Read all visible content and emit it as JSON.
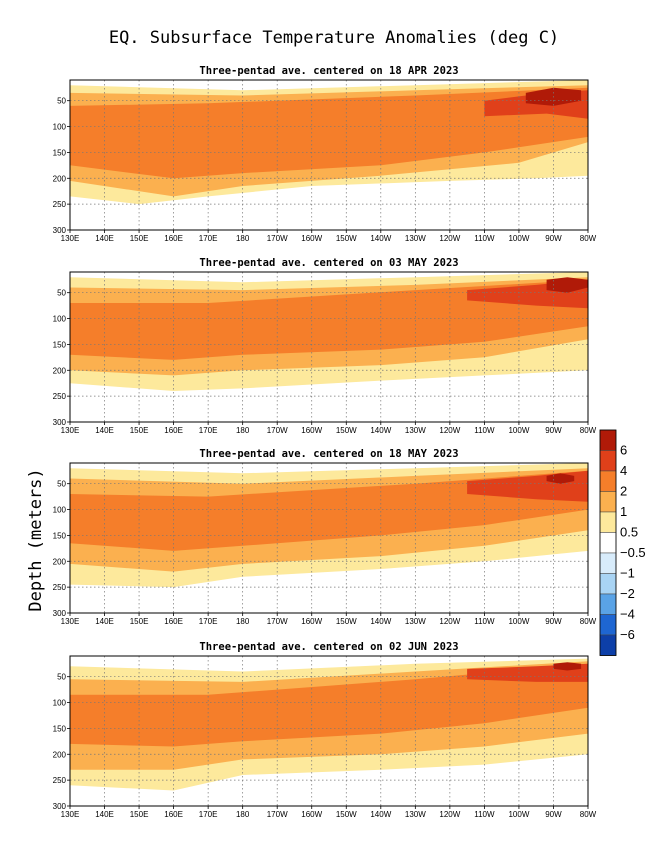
{
  "chart_data": {
    "type": "heatmap",
    "title": "EQ. Subsurface Temperature Anomalies (deg C)",
    "ylabel": "Depth (meters)",
    "y_ticks": [
      "50",
      "100",
      "150",
      "200",
      "250",
      "300"
    ],
    "ylim": [
      300,
      10
    ],
    "x_ticks": [
      "130E",
      "140E",
      "150E",
      "160E",
      "170E",
      "180",
      "170W",
      "160W",
      "150W",
      "140W",
      "130W",
      "120W",
      "110W",
      "100W",
      "90W",
      "80W"
    ],
    "x_range_lon": [
      130,
      280
    ],
    "grid": true,
    "legend": {
      "placement": "right",
      "labels": [
        "6",
        "4",
        "2",
        "1",
        "0.5",
        "−0.5",
        "−1",
        "−2",
        "−4",
        "−6"
      ],
      "colors": [
        "#b01a08",
        "#e0401a",
        "#f57e2a",
        "#fbb04f",
        "#fde99c",
        "#ffffff",
        "#d8ecfb",
        "#a9d4f4",
        "#5aa3e6",
        "#1e66d2",
        "#0d3fa8"
      ]
    },
    "panels": [
      {
        "title": "Three-pentad ave. centered on 18 APR 2023",
        "layers": [
          {
            "level": 0.5,
            "top": [
              [
                130,
                20
              ],
              [
                180,
                30
              ],
              [
                230,
                20
              ],
              [
                280,
                10
              ]
            ],
            "bottom": [
              [
                130,
                235
              ],
              [
                150,
                250
              ],
              [
                170,
                235
              ],
              [
                200,
                215
              ],
              [
                240,
                205
              ],
              [
                265,
                200
              ],
              [
                280,
                195
              ]
            ]
          },
          {
            "level": 1,
            "top": [
              [
                130,
                35
              ],
              [
                180,
                40
              ],
              [
                230,
                30
              ],
              [
                280,
                20
              ]
            ],
            "bottom": [
              [
                130,
                205
              ],
              [
                160,
                235
              ],
              [
                180,
                215
              ],
              [
                220,
                195
              ],
              [
                260,
                170
              ],
              [
                280,
                130
              ]
            ]
          },
          {
            "level": 2,
            "top": [
              [
                130,
                60
              ],
              [
                170,
                55
              ],
              [
                230,
                40
              ],
              [
                280,
                25
              ]
            ],
            "bottom": [
              [
                130,
                175
              ],
              [
                160,
                200
              ],
              [
                180,
                190
              ],
              [
                220,
                175
              ],
              [
                250,
                150
              ],
              [
                280,
                120
              ]
            ]
          },
          {
            "level": 4,
            "top": [
              [
                250,
                50
              ],
              [
                268,
                35
              ],
              [
                280,
                30
              ]
            ],
            "bottom": [
              [
                250,
                80
              ],
              [
                268,
                75
              ],
              [
                280,
                85
              ]
            ]
          },
          {
            "level": 6,
            "top": [
              [
                262,
                35
              ],
              [
                270,
                25
              ],
              [
                278,
                30
              ]
            ],
            "bottom": [
              [
                262,
                55
              ],
              [
                270,
                60
              ],
              [
                278,
                50
              ]
            ]
          }
        ]
      },
      {
        "title": "Three-pentad ave. centered on 03 MAY 2023",
        "layers": [
          {
            "level": 0.5,
            "top": [
              [
                130,
                20
              ],
              [
                180,
                30
              ],
              [
                230,
                20
              ],
              [
                280,
                10
              ]
            ],
            "bottom": [
              [
                130,
                225
              ],
              [
                160,
                240
              ],
              [
                180,
                235
              ],
              [
                220,
                220
              ],
              [
                250,
                210
              ],
              [
                280,
                200
              ]
            ]
          },
          {
            "level": 1,
            "top": [
              [
                130,
                40
              ],
              [
                180,
                45
              ],
              [
                230,
                35
              ],
              [
                280,
                20
              ]
            ],
            "bottom": [
              [
                130,
                200
              ],
              [
                160,
                210
              ],
              [
                180,
                200
              ],
              [
                220,
                190
              ],
              [
                250,
                175
              ],
              [
                280,
                140
              ]
            ]
          },
          {
            "level": 2,
            "top": [
              [
                130,
                70
              ],
              [
                170,
                70
              ],
              [
                230,
                45
              ],
              [
                280,
                25
              ]
            ],
            "bottom": [
              [
                130,
                170
              ],
              [
                160,
                180
              ],
              [
                180,
                170
              ],
              [
                220,
                160
              ],
              [
                250,
                145
              ],
              [
                280,
                115
              ]
            ]
          },
          {
            "level": 4,
            "top": [
              [
                245,
                45
              ],
              [
                265,
                35
              ],
              [
                280,
                25
              ]
            ],
            "bottom": [
              [
                245,
                65
              ],
              [
                265,
                75
              ],
              [
                280,
                80
              ]
            ]
          },
          {
            "level": 6,
            "top": [
              [
                268,
                25
              ],
              [
                274,
                20
              ],
              [
                280,
                25
              ]
            ],
            "bottom": [
              [
                268,
                45
              ],
              [
                274,
                50
              ],
              [
                280,
                40
              ]
            ]
          }
        ]
      },
      {
        "title": "Three-pentad ave. centered on 18 MAY 2023",
        "layers": [
          {
            "level": 0.5,
            "top": [
              [
                130,
                20
              ],
              [
                180,
                30
              ],
              [
                230,
                20
              ],
              [
                280,
                10
              ]
            ],
            "bottom": [
              [
                130,
                245
              ],
              [
                160,
                250
              ],
              [
                180,
                230
              ],
              [
                220,
                215
              ],
              [
                250,
                200
              ],
              [
                280,
                180
              ]
            ]
          },
          {
            "level": 1,
            "top": [
              [
                130,
                40
              ],
              [
                180,
                50
              ],
              [
                230,
                35
              ],
              [
                280,
                20
              ]
            ],
            "bottom": [
              [
                130,
                205
              ],
              [
                160,
                220
              ],
              [
                180,
                205
              ],
              [
                220,
                190
              ],
              [
                250,
                170
              ],
              [
                280,
                140
              ]
            ]
          },
          {
            "level": 2,
            "top": [
              [
                130,
                70
              ],
              [
                170,
                75
              ],
              [
                230,
                50
              ],
              [
                280,
                25
              ]
            ],
            "bottom": [
              [
                130,
                165
              ],
              [
                160,
                180
              ],
              [
                180,
                170
              ],
              [
                220,
                150
              ],
              [
                250,
                130
              ],
              [
                280,
                100
              ]
            ]
          },
          {
            "level": 4,
            "top": [
              [
                245,
                45
              ],
              [
                265,
                35
              ],
              [
                280,
                25
              ]
            ],
            "bottom": [
              [
                245,
                70
              ],
              [
                265,
                80
              ],
              [
                280,
                85
              ]
            ]
          },
          {
            "level": 6,
            "top": [
              [
                268,
                35
              ],
              [
                272,
                30
              ],
              [
                276,
                35
              ]
            ],
            "bottom": [
              [
                268,
                45
              ],
              [
                272,
                50
              ],
              [
                276,
                45
              ]
            ]
          }
        ]
      },
      {
        "title": "Three-pentad ave. centered on 02 JUN 2023",
        "layers": [
          {
            "level": 0.5,
            "top": [
              [
                130,
                30
              ],
              [
                180,
                40
              ],
              [
                230,
                25
              ],
              [
                280,
                15
              ]
            ],
            "bottom": [
              [
                130,
                260
              ],
              [
                160,
                270
              ],
              [
                180,
                240
              ],
              [
                220,
                230
              ],
              [
                250,
                220
              ],
              [
                280,
                200
              ]
            ]
          },
          {
            "level": 1,
            "top": [
              [
                130,
                55
              ],
              [
                180,
                60
              ],
              [
                230,
                40
              ],
              [
                280,
                20
              ]
            ],
            "bottom": [
              [
                130,
                230
              ],
              [
                160,
                230
              ],
              [
                180,
                210
              ],
              [
                220,
                200
              ],
              [
                250,
                185
              ],
              [
                280,
                160
              ]
            ]
          },
          {
            "level": 2,
            "top": [
              [
                130,
                85
              ],
              [
                170,
                85
              ],
              [
                230,
                55
              ],
              [
                280,
                25
              ]
            ],
            "bottom": [
              [
                130,
                180
              ],
              [
                160,
                185
              ],
              [
                180,
                175
              ],
              [
                220,
                160
              ],
              [
                250,
                140
              ],
              [
                280,
                110
              ]
            ]
          },
          {
            "level": 4,
            "top": [
              [
                245,
                35
              ],
              [
                265,
                30
              ],
              [
                280,
                25
              ]
            ],
            "bottom": [
              [
                245,
                55
              ],
              [
                265,
                60
              ],
              [
                280,
                60
              ]
            ]
          },
          {
            "level": 6,
            "top": [
              [
                270,
                25
              ],
              [
                274,
                22
              ],
              [
                278,
                25
              ]
            ],
            "bottom": [
              [
                270,
                35
              ],
              [
                274,
                38
              ],
              [
                278,
                35
              ]
            ]
          }
        ]
      }
    ]
  }
}
